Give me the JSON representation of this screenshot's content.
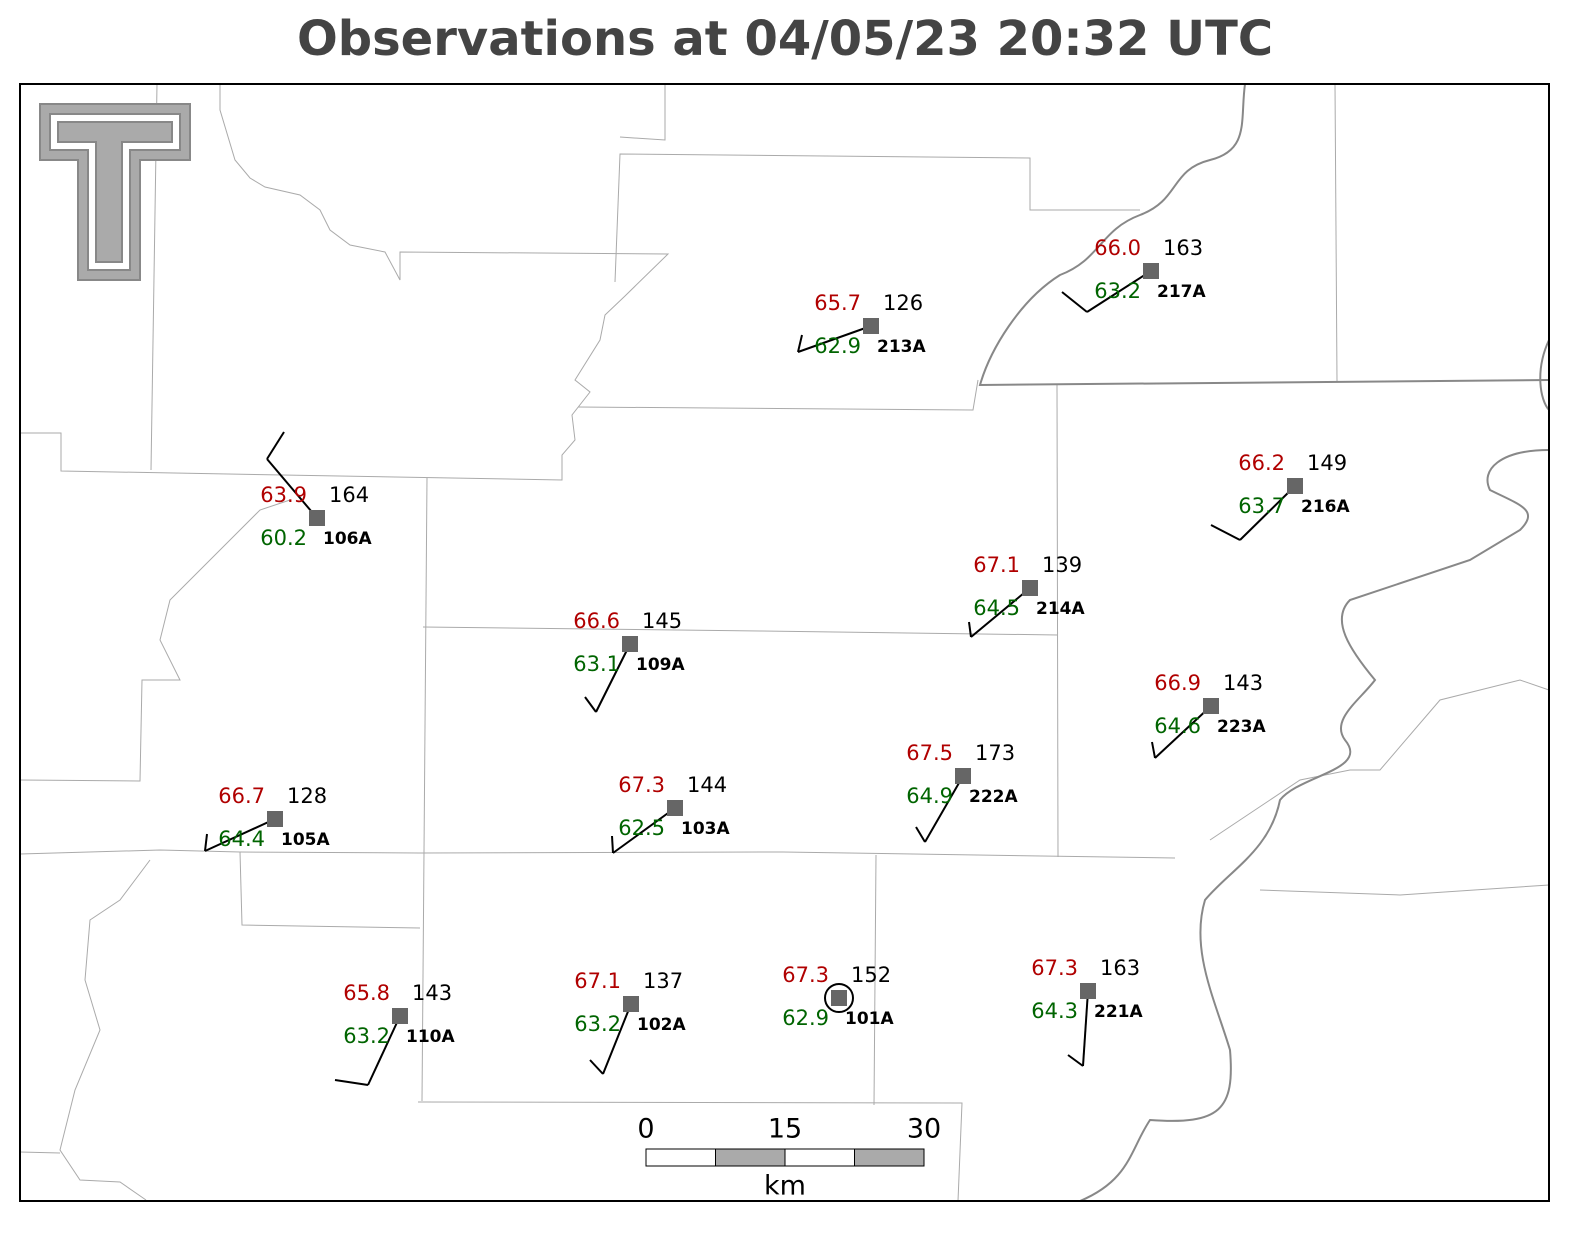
{
  "title": "Observations at 04/05/23 20:32 UTC",
  "stations": [
    {
      "id": "213A",
      "temperature": "65.7",
      "dewpoint": "62.9",
      "pressure": 126
    },
    {
      "id": "217A",
      "temperature": "66.0",
      "dewpoint": "63.2",
      "pressure": 163
    },
    {
      "id": "106A",
      "temperature": "63.9",
      "dewpoint": "60.2",
      "pressure": 164
    },
    {
      "id": "216A",
      "temperature": "66.2",
      "dewpoint": "63.7",
      "pressure": 149
    },
    {
      "id": "214A",
      "temperature": "67.1",
      "dewpoint": "64.5",
      "pressure": 139
    },
    {
      "id": "109A",
      "temperature": "66.6",
      "dewpoint": "63.1",
      "pressure": 145
    },
    {
      "id": "223A",
      "temperature": "66.9",
      "dewpoint": "64.6",
      "pressure": 143
    },
    {
      "id": "105A",
      "temperature": "66.7",
      "dewpoint": "64.4",
      "pressure": 128
    },
    {
      "id": "103A",
      "temperature": "67.3",
      "dewpoint": "62.5",
      "pressure": 144
    },
    {
      "id": "222A",
      "temperature": "67.5",
      "dewpoint": "64.9",
      "pressure": 173
    },
    {
      "id": "110A",
      "temperature": "65.8",
      "dewpoint": "63.2",
      "pressure": 143
    },
    {
      "id": "102A",
      "temperature": "67.1",
      "dewpoint": "63.2",
      "pressure": 137
    },
    {
      "id": "101A",
      "temperature": "67.3",
      "dewpoint": "62.9",
      "pressure": 152
    },
    {
      "id": "221A",
      "temperature": "67.3",
      "dewpoint": "64.3",
      "pressure": 163
    }
  ],
  "scale_bar": {
    "ticks": [
      0,
      15,
      30
    ],
    "unit": "km"
  }
}
